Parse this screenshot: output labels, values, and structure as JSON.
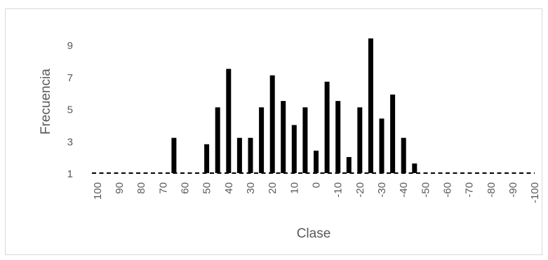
{
  "chart_data": {
    "type": "bar",
    "xlabel": "Clase",
    "ylabel": "Frecuencia",
    "y_ticks": [
      "1",
      "3",
      "5",
      "7",
      "9"
    ],
    "ylim": [
      0.5,
      10
    ],
    "baseline": 1,
    "grid": false,
    "legend": "none",
    "bar_color": "#000000",
    "categories": [
      "100",
      "95",
      "90",
      "85",
      "80",
      "75",
      "70",
      "65",
      "60",
      "55",
      "50",
      "45",
      "40",
      "35",
      "30",
      "25",
      "20",
      "15",
      "10",
      "5",
      "0",
      "-5",
      "-10",
      "-15",
      "-20",
      "-25",
      "-30",
      "-35",
      "-40",
      "-45",
      "-50",
      "-55",
      "-60",
      "-65",
      "-70",
      "-75",
      "-80",
      "-85",
      "-90",
      "-95",
      "-100"
    ],
    "tick_labels": [
      "100",
      "",
      "90",
      "",
      "80",
      "",
      "70",
      "",
      "60",
      "",
      "50",
      "",
      "40",
      "",
      "30",
      "",
      "20",
      "",
      "10",
      "",
      "0",
      "",
      "-10",
      "",
      "-20",
      "",
      "-30",
      "",
      "-40",
      "",
      "-50",
      "",
      "-60",
      "",
      "-70",
      "",
      "-80",
      "",
      "-90",
      "",
      "-100"
    ],
    "values": [
      1,
      1,
      1,
      1,
      1,
      1,
      1,
      3.2,
      1,
      1,
      2.8,
      5.1,
      7.5,
      3.2,
      3.2,
      5.1,
      7.1,
      5.5,
      4.0,
      5.1,
      2.4,
      6.7,
      5.5,
      2.0,
      5.1,
      9.4,
      4.4,
      5.9,
      3.2,
      1.6,
      1,
      1,
      1,
      1,
      1,
      1,
      1,
      1,
      1,
      1,
      1
    ]
  }
}
